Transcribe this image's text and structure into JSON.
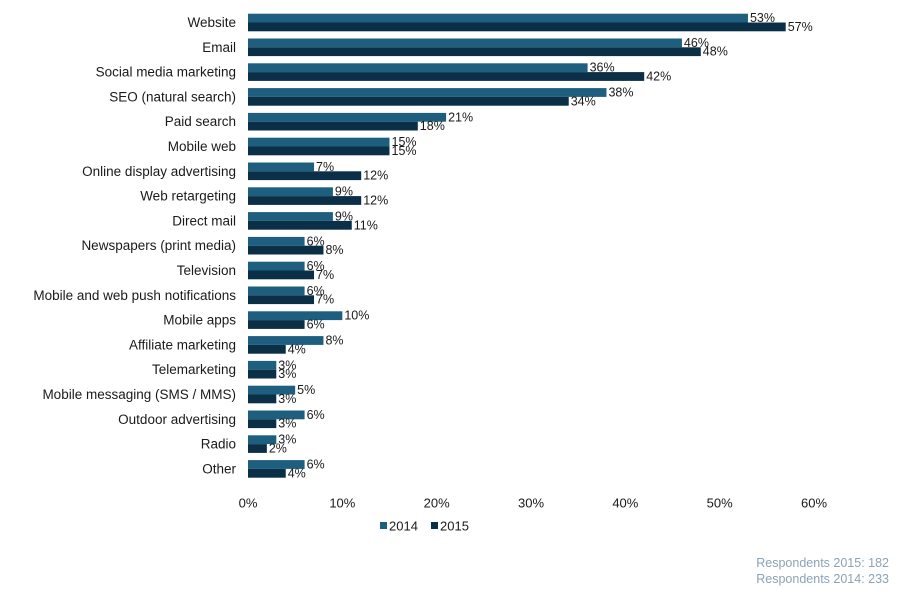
{
  "chart_data": {
    "type": "bar",
    "orientation": "horizontal",
    "categories": [
      "Website",
      "Email",
      "Social media marketing",
      "SEO (natural search)",
      "Paid search",
      "Mobile web",
      "Online display advertising",
      "Web retargeting",
      "Direct mail",
      "Newspapers (print media)",
      "Television",
      "Mobile and web push notifications",
      "Mobile apps",
      "Affiliate marketing",
      "Telemarketing",
      "Mobile messaging (SMS / MMS)",
      "Outdoor advertising",
      "Radio",
      "Other"
    ],
    "series": [
      {
        "name": "2014",
        "color": "#1e5f80",
        "values": [
          53,
          46,
          36,
          38,
          21,
          15,
          7,
          9,
          9,
          6,
          6,
          6,
          10,
          8,
          3,
          5,
          6,
          3,
          6
        ]
      },
      {
        "name": "2015",
        "color": "#0c2f48",
        "values": [
          57,
          48,
          42,
          34,
          18,
          15,
          12,
          12,
          11,
          8,
          7,
          7,
          6,
          4,
          3,
          3,
          3,
          2,
          4
        ]
      }
    ],
    "value_suffix": "%",
    "xlim": [
      0,
      60
    ],
    "xticks": [
      0,
      10,
      20,
      30,
      40,
      50,
      60
    ],
    "tick_labels": [
      "0%",
      "10%",
      "20%",
      "30%",
      "40%",
      "50%",
      "60%"
    ],
    "legend_position": "bottom",
    "grid": false
  },
  "footnotes": [
    "Respondents 2015: 182",
    "Respondents 2014: 233"
  ]
}
